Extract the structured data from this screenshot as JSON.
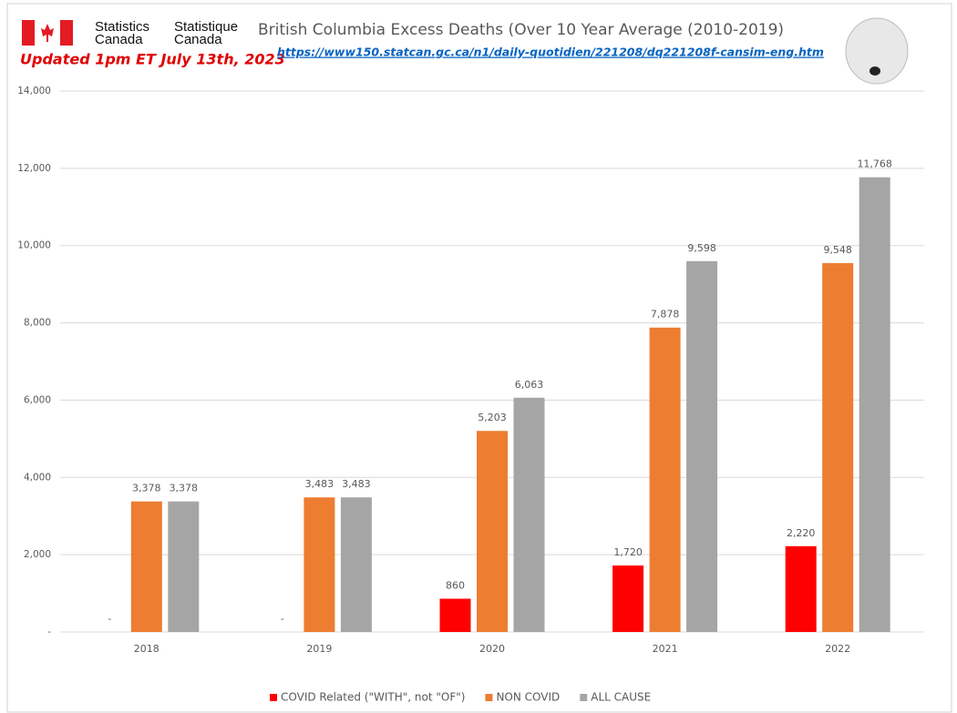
{
  "chart_data": {
    "type": "bar",
    "title": "British Columbia Excess Deaths (Over 10 Year Average (2010-2019)",
    "subtitle": "https://www150.statcan.gc.ca/n1/daily-quotidien/221208/dq221208f-cansim-eng.htm",
    "updated": "Updated 1pm ET July 13th, 2023",
    "agency": {
      "en": [
        "Statistics",
        "Canada"
      ],
      "fr": [
        "Statistique",
        "Canada"
      ]
    },
    "categories": [
      "2018",
      "2019",
      "2020",
      "2021",
      "2022"
    ],
    "series": [
      {
        "name": "COVID Related (\"WITH\", not \"OF\")",
        "color": "#ff0000",
        "values": [
          0,
          0,
          860,
          1720,
          2220
        ],
        "value_labels": [
          "-",
          "-",
          "860",
          "1,720",
          "2,220"
        ]
      },
      {
        "name": "NON COVID",
        "color": "#ed7d31",
        "values": [
          3378,
          3483,
          5203,
          7878,
          9548
        ],
        "value_labels": [
          "3,378",
          "3,483",
          "5,203",
          "7,878",
          "9,548"
        ]
      },
      {
        "name": "ALL CAUSE",
        "color": "#a5a5a5",
        "values": [
          3378,
          3483,
          6063,
          9598,
          11768
        ],
        "value_labels": [
          "3,378",
          "3,483",
          "6,063",
          "9,598",
          "11,768"
        ]
      }
    ],
    "ylim": [
      0,
      14000
    ],
    "yticks": [
      {
        "value": 0,
        "label": "-"
      },
      {
        "value": 2000,
        "label": "2,000"
      },
      {
        "value": 4000,
        "label": "4,000"
      },
      {
        "value": 6000,
        "label": "6,000"
      },
      {
        "value": 8000,
        "label": "8,000"
      },
      {
        "value": 10000,
        "label": "10,000"
      },
      {
        "value": 12000,
        "label": "12,000"
      },
      {
        "value": 14000,
        "label": "14,000"
      }
    ],
    "grid": true,
    "legend": "bottom"
  }
}
